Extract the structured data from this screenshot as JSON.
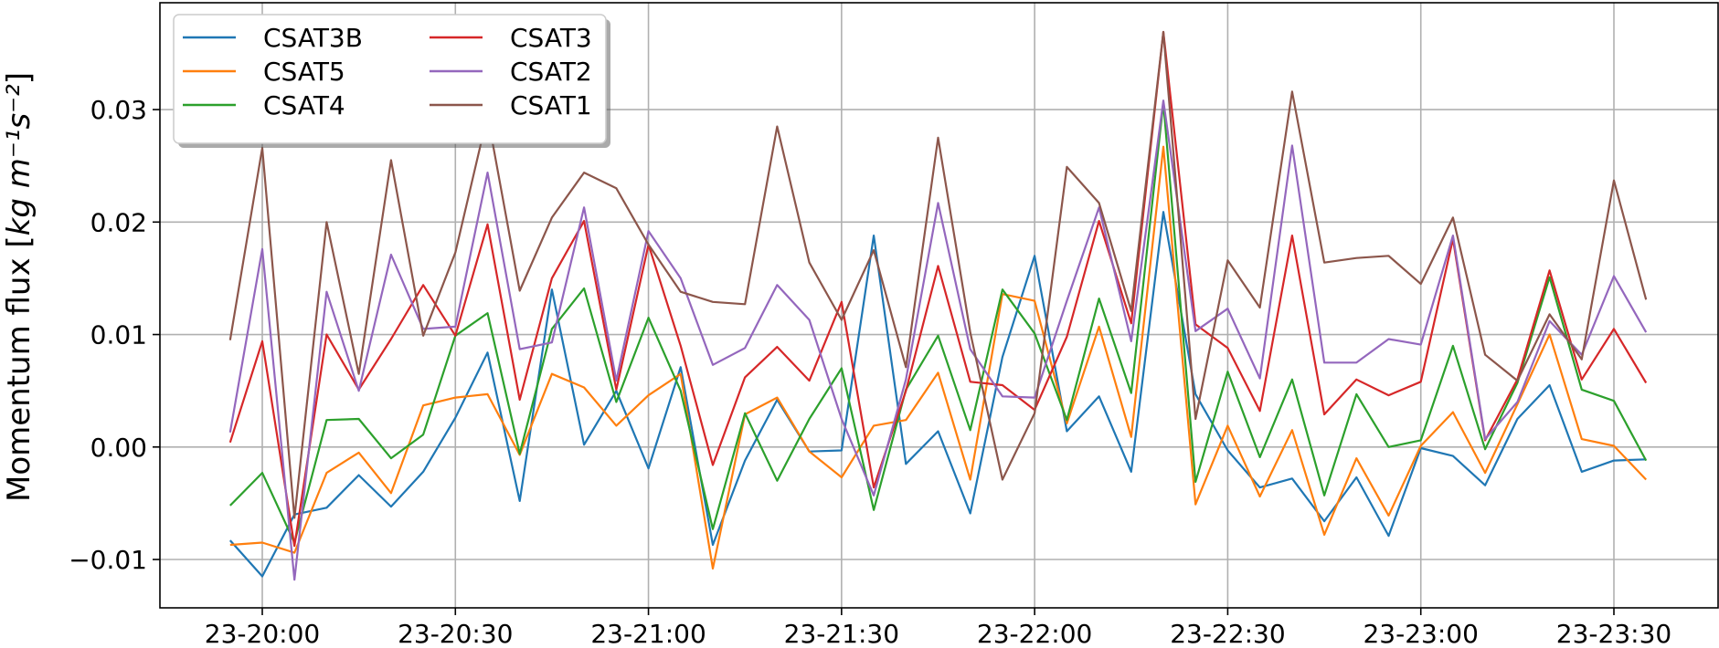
{
  "chart_data": {
    "type": "line",
    "xlabel": "",
    "ylabel_prefix": "Momentum flux [",
    "ylabel_unit": "kg m⁻¹s⁻²",
    "ylabel_suffix": "]",
    "ylim": [
      -0.0143,
      0.0395
    ],
    "yticks": [
      -0.01,
      0.0,
      0.01,
      0.02,
      0.03
    ],
    "ytick_labels": [
      "−0.01",
      "0.00",
      "0.01",
      "0.02",
      "0.03"
    ],
    "xticks": [
      "20:00",
      "20:30",
      "21:00",
      "21:30",
      "22:00",
      "22:30",
      "23:00",
      "23:30"
    ],
    "xtick_labels": [
      "23-20:00",
      "23-20:30",
      "23-21:00",
      "23-21:30",
      "23-22:00",
      "23-22:30",
      "23-23:00",
      "23-23:30"
    ],
    "grid": true,
    "legend_position": "top-left",
    "x": [
      "19:55",
      "20:00",
      "20:05",
      "20:10",
      "20:15",
      "20:20",
      "20:25",
      "20:30",
      "20:35",
      "20:40",
      "20:45",
      "20:50",
      "20:55",
      "21:00",
      "21:05",
      "21:10",
      "21:15",
      "21:20",
      "21:25",
      "21:30",
      "21:35",
      "21:40",
      "21:45",
      "21:50",
      "21:55",
      "22:00",
      "22:05",
      "22:10",
      "22:15",
      "22:20",
      "22:25",
      "22:30",
      "22:35",
      "22:40",
      "22:45",
      "22:50",
      "22:55",
      "23:00",
      "23:05",
      "23:10",
      "23:15",
      "23:20",
      "23:25",
      "23:30",
      "23:35"
    ],
    "series": [
      {
        "name": "CSAT3B",
        "color": "#1f77b4",
        "values": [
          -0.0083,
          -0.0115,
          -0.006,
          -0.0054,
          -0.0025,
          -0.0053,
          -0.0022,
          0.0026,
          0.0084,
          -0.0048,
          0.014,
          0.0002,
          0.005,
          -0.0019,
          0.0071,
          -0.0087,
          -0.0012,
          0.0042,
          -0.0004,
          -0.0003,
          0.0188,
          -0.0015,
          0.0014,
          -0.0059,
          0.008,
          0.017,
          0.0014,
          0.0045,
          -0.0022,
          0.0209,
          0.0047,
          -0.0003,
          -0.0036,
          -0.0028,
          -0.0066,
          -0.0027,
          -0.0079,
          -0.0001,
          -0.0008,
          -0.0034,
          0.0025,
          0.0055,
          -0.0022,
          -0.0012,
          -0.0011
        ]
      },
      {
        "name": "CSAT5",
        "color": "#ff7f0e",
        "values": [
          -0.0087,
          -0.0085,
          -0.0094,
          -0.0023,
          -0.0005,
          -0.0041,
          0.0037,
          0.0044,
          0.0047,
          -0.0007,
          0.0065,
          0.0053,
          0.0019,
          0.0046,
          0.0065,
          -0.0108,
          0.0029,
          0.0044,
          -0.0004,
          -0.0027,
          0.0019,
          0.0024,
          0.0066,
          -0.0029,
          0.0136,
          0.013,
          0.0021,
          0.0107,
          0.0009,
          0.0267,
          -0.0051,
          0.0019,
          -0.0044,
          0.0015,
          -0.0078,
          -0.001,
          -0.0061,
          0.0001,
          0.0031,
          -0.0023,
          0.0038,
          0.01,
          0.0007,
          0.0001,
          -0.0029
        ]
      },
      {
        "name": "CSAT4",
        "color": "#2ca02c",
        "values": [
          -0.0052,
          -0.0023,
          -0.0085,
          0.0024,
          0.0025,
          -0.001,
          0.0011,
          0.0099,
          0.0119,
          -0.0006,
          0.0105,
          0.0141,
          0.004,
          0.0115,
          0.005,
          -0.0073,
          0.003,
          -0.003,
          0.0025,
          0.007,
          -0.0056,
          0.0051,
          0.0099,
          0.0015,
          0.014,
          0.0101,
          0.0024,
          0.0132,
          0.0048,
          0.0306,
          -0.0031,
          0.0067,
          -0.0009,
          0.006,
          -0.0043,
          0.0047,
          0.0,
          0.0006,
          0.009,
          -0.0002,
          0.0057,
          0.0151,
          0.0051,
          0.0041,
          -0.0012
        ]
      },
      {
        "name": "CSAT3",
        "color": "#d62728",
        "values": [
          0.0004,
          0.0094,
          -0.0088,
          0.01,
          0.0051,
          0.0096,
          0.0144,
          0.0099,
          0.0198,
          0.0042,
          0.015,
          0.0201,
          0.0051,
          0.018,
          0.009,
          -0.0016,
          0.0062,
          0.0089,
          0.0059,
          0.0129,
          -0.0036,
          0.005,
          0.0161,
          0.0058,
          0.0055,
          0.0033,
          0.0098,
          0.0201,
          0.011,
          0.0369,
          0.0109,
          0.0088,
          0.0032,
          0.0188,
          0.0029,
          0.006,
          0.0046,
          0.0058,
          0.0185,
          0.0006,
          0.006,
          0.0157,
          0.006,
          0.0105,
          0.0057
        ]
      },
      {
        "name": "CSAT2",
        "color": "#9467bd",
        "values": [
          0.0013,
          0.0176,
          -0.0118,
          0.0138,
          0.005,
          0.0171,
          0.0105,
          0.0107,
          0.0244,
          0.0087,
          0.0093,
          0.0213,
          0.0059,
          0.0192,
          0.015,
          0.0073,
          0.0088,
          0.0144,
          0.0113,
          0.0025,
          -0.0043,
          0.006,
          0.0217,
          0.0087,
          0.0045,
          0.0044,
          0.013,
          0.0213,
          0.0094,
          0.0308,
          0.0103,
          0.0123,
          0.0061,
          0.0268,
          0.0075,
          0.0075,
          0.0096,
          0.0091,
          0.0188,
          0.0007,
          0.004,
          0.0112,
          0.0082,
          0.0152,
          0.0102
        ]
      },
      {
        "name": "CSAT1",
        "color": "#8c564b",
        "values": [
          0.0095,
          0.0266,
          -0.0063,
          0.02,
          0.0065,
          0.0255,
          0.0099,
          0.0173,
          0.0295,
          0.0139,
          0.0204,
          0.0244,
          0.023,
          0.018,
          0.0138,
          0.0129,
          0.0127,
          0.0285,
          0.0164,
          0.0113,
          0.0175,
          0.0071,
          0.0275,
          0.0102,
          -0.0029,
          0.003,
          0.0249,
          0.0217,
          0.0121,
          0.0369,
          0.0025,
          0.0166,
          0.0124,
          0.0316,
          0.0164,
          0.0168,
          0.017,
          0.0145,
          0.0204,
          0.0082,
          0.0059,
          0.0118,
          0.0078,
          0.0237,
          0.0131
        ]
      }
    ]
  }
}
